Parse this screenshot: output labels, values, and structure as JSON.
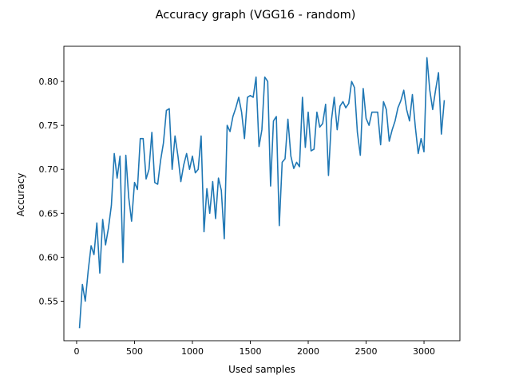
{
  "chart_data": {
    "type": "line",
    "title": "Accuracy graph (VGG16 - random)",
    "xlabel": "Used samples",
    "ylabel": "Accuracy",
    "xlim": [
      -110,
      3310
    ],
    "ylim": [
      0.505,
      0.84
    ],
    "x_ticks": [
      0,
      500,
      1000,
      1500,
      2000,
      2500,
      3000
    ],
    "x_tick_labels": [
      "0",
      "500",
      "1000",
      "1500",
      "2000",
      "2500",
      "3000"
    ],
    "y_ticks": [
      0.55,
      0.6,
      0.65,
      0.7,
      0.75,
      0.8
    ],
    "y_tick_labels": [
      "0.55",
      "0.60",
      "0.65",
      "0.70",
      "0.75",
      "0.80"
    ],
    "grid": false,
    "line_color": "#1f77b4",
    "series": [
      {
        "x": [
          25,
          50,
          75,
          100,
          125,
          150,
          175,
          200,
          225,
          250,
          275,
          300,
          325,
          350,
          375,
          400,
          425,
          450,
          475,
          500,
          525,
          550,
          575,
          600,
          625,
          650,
          675,
          700,
          725,
          750,
          775,
          800,
          825,
          850,
          875,
          900,
          925,
          950,
          975,
          1000,
          1025,
          1050,
          1075,
          1100,
          1125,
          1150,
          1175,
          1200,
          1225,
          1250,
          1275,
          1300,
          1325,
          1350,
          1375,
          1400,
          1425,
          1450,
          1475,
          1500,
          1525,
          1550,
          1575,
          1600,
          1625,
          1650,
          1675,
          1700,
          1725,
          1750,
          1775,
          1800,
          1825,
          1850,
          1875,
          1900,
          1925,
          1950,
          1975,
          2000,
          2025,
          2050,
          2075,
          2100,
          2125,
          2150,
          2175,
          2200,
          2225,
          2250,
          2275,
          2300,
          2325,
          2350,
          2375,
          2400,
          2425,
          2450,
          2475,
          2500,
          2525,
          2550,
          2575,
          2600,
          2625,
          2650,
          2675,
          2700,
          2725,
          2750,
          2775,
          2800,
          2825,
          2850,
          2875,
          2900,
          2925,
          2950,
          2975,
          3000,
          3025,
          3050,
          3075,
          3100,
          3125,
          3150,
          3175
        ],
        "y": [
          0.52,
          0.569,
          0.55,
          0.585,
          0.613,
          0.603,
          0.639,
          0.582,
          0.643,
          0.614,
          0.633,
          0.659,
          0.718,
          0.69,
          0.715,
          0.594,
          0.716,
          0.668,
          0.641,
          0.685,
          0.677,
          0.735,
          0.735,
          0.689,
          0.7,
          0.742,
          0.685,
          0.683,
          0.71,
          0.73,
          0.767,
          0.769,
          0.7,
          0.738,
          0.715,
          0.686,
          0.705,
          0.718,
          0.7,
          0.715,
          0.696,
          0.7,
          0.738,
          0.629,
          0.678,
          0.65,
          0.686,
          0.644,
          0.69,
          0.676,
          0.621,
          0.75,
          0.743,
          0.76,
          0.77,
          0.782,
          0.765,
          0.735,
          0.782,
          0.784,
          0.782,
          0.805,
          0.726,
          0.745,
          0.805,
          0.8,
          0.681,
          0.755,
          0.76,
          0.636,
          0.708,
          0.712,
          0.757,
          0.715,
          0.701,
          0.708,
          0.703,
          0.782,
          0.725,
          0.765,
          0.721,
          0.723,
          0.765,
          0.748,
          0.752,
          0.774,
          0.693,
          0.755,
          0.782,
          0.745,
          0.772,
          0.777,
          0.77,
          0.775,
          0.8,
          0.793,
          0.742,
          0.716,
          0.792,
          0.758,
          0.75,
          0.765,
          0.765,
          0.765,
          0.728,
          0.777,
          0.768,
          0.732,
          0.745,
          0.755,
          0.77,
          0.778,
          0.79,
          0.768,
          0.755,
          0.785,
          0.748,
          0.718,
          0.735,
          0.72,
          0.827,
          0.79,
          0.768,
          0.79,
          0.81,
          0.74,
          0.778
        ]
      }
    ]
  }
}
